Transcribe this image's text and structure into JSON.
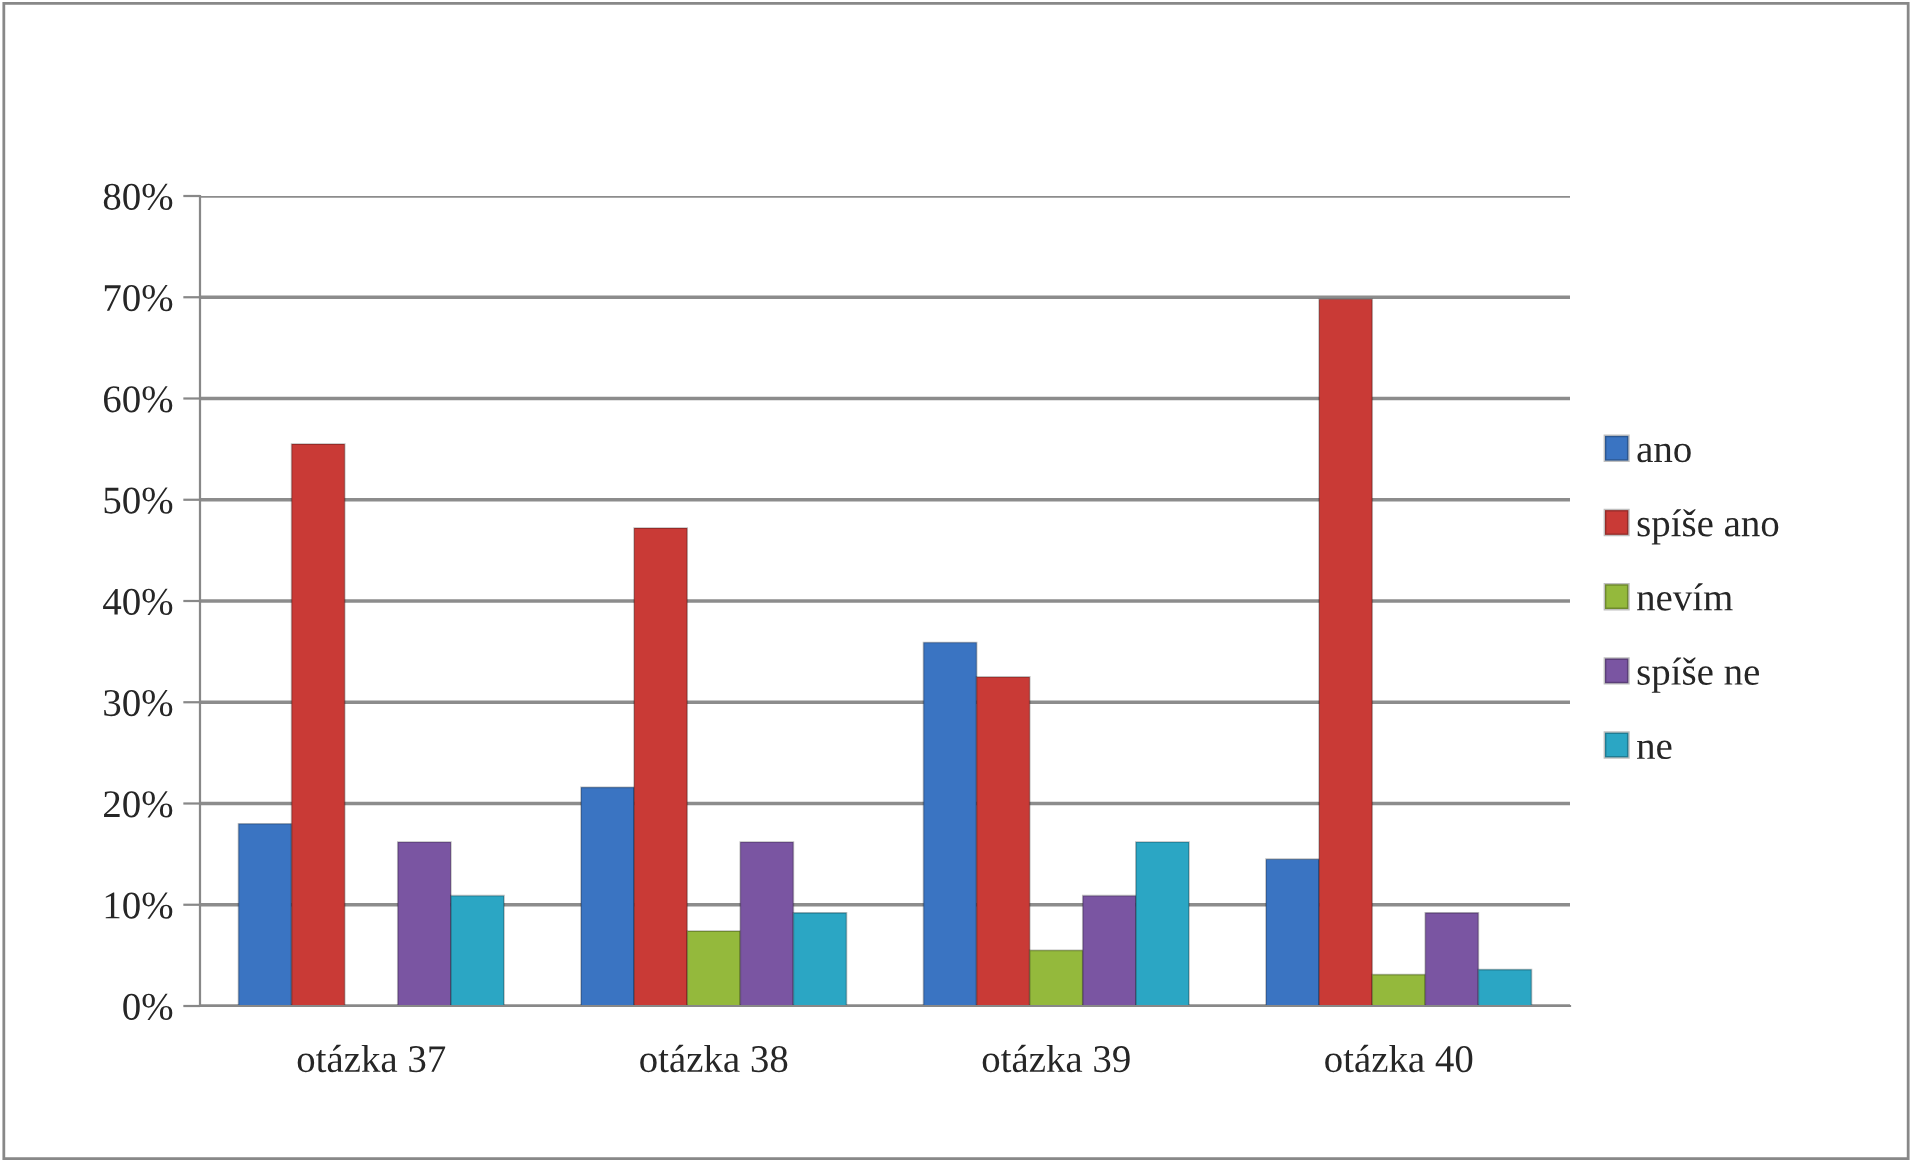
{
  "chart_data": {
    "type": "bar",
    "categories": [
      "otázka 37",
      "otázka 38",
      "otázka 39",
      "otázka 40"
    ],
    "series": [
      {
        "name": "ano",
        "color": "#3a74c2",
        "values": [
          18.0,
          21.6,
          35.9,
          14.5
        ]
      },
      {
        "name": "spíše ano",
        "color": "#c93a36",
        "values": [
          55.5,
          47.2,
          32.5,
          69.8
        ]
      },
      {
        "name": "nevím",
        "color": "#94b93c",
        "values": [
          null,
          7.4,
          5.5,
          3.1
        ]
      },
      {
        "name": "spíše ne",
        "color": "#7a55a2",
        "values": [
          16.2,
          16.2,
          10.9,
          9.2
        ]
      },
      {
        "name": "ne",
        "color": "#2ba6c4",
        "values": [
          10.9,
          9.2,
          16.2,
          3.6
        ]
      }
    ],
    "ylim": [
      0,
      80
    ],
    "yticks": [
      {
        "value": 0,
        "label": "0%"
      },
      {
        "value": 10,
        "label": "10%"
      },
      {
        "value": 20,
        "label": "20%"
      },
      {
        "value": 30,
        "label": "30%"
      },
      {
        "value": 40,
        "label": "40%"
      },
      {
        "value": 50,
        "label": "50%"
      },
      {
        "value": 60,
        "label": "60%"
      },
      {
        "value": 70,
        "label": "70%"
      },
      {
        "value": 80,
        "label": "80%"
      }
    ],
    "grid": "y",
    "legend": "right"
  }
}
